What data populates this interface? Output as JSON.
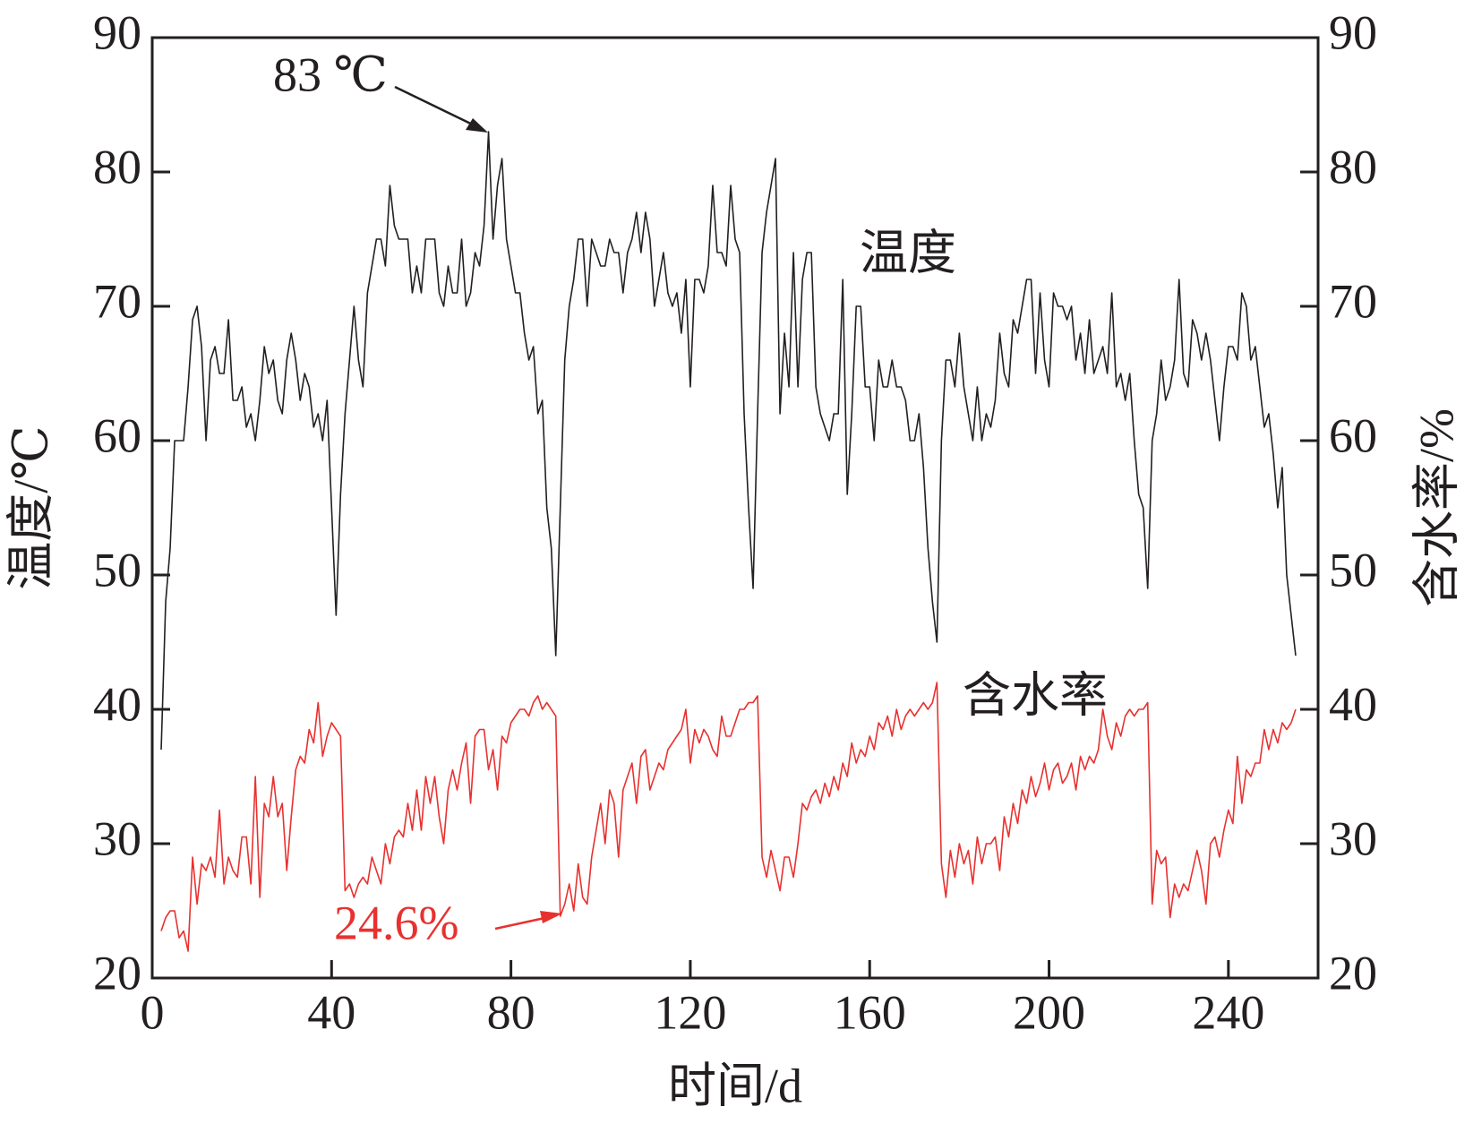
{
  "chart_data": {
    "type": "line",
    "xlabel": "时间/d",
    "ylabel": "温度/℃",
    "y2label": "含水率/%",
    "xlim": [
      0,
      260
    ],
    "xticks": [
      0,
      40,
      80,
      120,
      160,
      200,
      240
    ],
    "ylim": [
      20,
      90
    ],
    "yticks": [
      20,
      30,
      40,
      50,
      60,
      70,
      80,
      90
    ],
    "y2lim": [
      20,
      90
    ],
    "y2ticks": [
      20,
      30,
      40,
      50,
      60,
      70,
      80,
      90
    ],
    "annotations": [
      "83 ℃",
      "24.6%"
    ],
    "x": [
      2,
      3,
      4,
      5,
      6,
      7,
      8,
      9,
      10,
      11,
      12,
      13,
      14,
      15,
      16,
      17,
      18,
      19,
      20,
      21,
      22,
      23,
      24,
      25,
      26,
      27,
      28,
      29,
      30,
      31,
      32,
      33,
      34,
      35,
      36,
      37,
      38,
      39,
      40,
      41,
      42,
      43,
      44,
      45,
      46,
      47,
      48,
      49,
      50,
      51,
      52,
      53,
      54,
      55,
      56,
      57,
      58,
      59,
      60,
      61,
      62,
      63,
      64,
      65,
      66,
      67,
      68,
      69,
      70,
      71,
      72,
      73,
      74,
      75,
      76,
      77,
      78,
      79,
      80,
      81,
      82,
      83,
      84,
      85,
      86,
      87,
      88,
      89,
      90,
      91,
      92,
      93,
      94,
      95,
      96,
      97,
      98,
      99,
      100,
      101,
      102,
      103,
      104,
      105,
      106,
      107,
      108,
      109,
      110,
      111,
      112,
      113,
      114,
      115,
      116,
      117,
      118,
      119,
      120,
      121,
      122,
      123,
      124,
      125,
      126,
      127,
      128,
      129,
      130,
      131,
      132,
      133,
      134,
      135,
      136,
      137,
      138,
      139,
      140,
      141,
      142,
      143,
      144,
      145,
      146,
      147,
      148,
      149,
      150,
      151,
      152,
      153,
      154,
      155,
      156,
      157,
      158,
      159,
      160,
      161,
      162,
      163,
      164,
      165,
      166,
      167,
      168,
      169,
      170,
      171,
      172,
      173,
      174,
      175,
      176,
      177,
      178,
      179,
      180,
      181,
      182,
      183,
      184,
      185,
      186,
      187,
      188,
      189,
      190,
      191,
      192,
      193,
      194,
      195,
      196,
      197,
      198,
      199,
      200,
      201,
      202,
      203,
      204,
      205,
      206,
      207,
      208,
      209,
      210,
      211,
      212,
      213,
      214,
      215,
      216,
      217,
      218,
      219,
      220,
      221,
      222,
      223,
      224,
      225,
      226,
      227,
      228,
      229,
      230,
      231,
      232,
      233,
      234,
      235,
      236,
      237,
      238,
      239,
      240,
      241,
      242,
      243,
      244,
      245,
      246,
      247,
      248,
      249,
      250,
      251,
      252,
      253,
      254,
      255
    ],
    "series": [
      {
        "name": "温度",
        "color": "#231f20",
        "values": [
          37,
          48,
          52,
          60,
          60,
          60,
          64,
          69,
          70,
          67,
          60,
          66,
          67,
          65,
          65,
          69,
          63,
          63,
          64,
          61,
          62,
          60,
          63,
          67,
          65,
          66,
          63,
          62,
          66,
          68,
          66,
          63,
          65,
          64,
          61,
          62,
          60,
          63,
          55,
          47,
          56,
          62,
          66,
          70,
          66,
          64,
          71,
          73,
          75,
          75,
          73,
          79,
          76,
          75,
          75,
          75,
          71,
          73,
          71,
          75,
          75,
          75,
          71,
          70,
          73,
          71,
          71,
          75,
          70,
          71,
          74,
          73,
          76,
          83,
          75,
          79,
          81,
          75,
          73,
          71,
          71,
          68,
          66,
          67,
          62,
          63,
          55,
          52,
          44,
          55,
          66,
          70,
          72,
          75,
          75,
          70,
          75,
          74,
          73,
          73,
          75,
          74,
          74,
          71,
          74,
          75,
          77,
          74,
          77,
          75,
          70,
          72,
          74,
          71,
          70,
          71,
          68,
          72,
          64,
          72,
          72,
          71,
          73,
          79,
          74,
          74,
          73,
          79,
          75,
          74,
          62,
          55,
          49,
          62,
          74,
          77,
          79,
          81,
          62,
          68,
          64,
          74,
          64,
          72,
          74,
          74,
          64,
          62,
          61,
          60,
          62,
          62,
          72,
          56,
          62,
          70,
          70,
          64,
          64,
          60,
          66,
          64,
          64,
          66,
          64,
          64,
          63,
          60,
          60,
          62,
          58,
          52,
          48,
          45,
          60,
          66,
          66,
          64,
          68,
          64,
          62,
          60,
          64,
          60,
          62,
          61,
          63,
          68,
          65,
          64,
          69,
          68,
          70,
          72,
          72,
          65,
          71,
          66,
          64,
          71,
          70,
          70,
          69,
          70,
          66,
          68,
          65,
          69,
          65,
          66,
          67,
          65,
          71,
          64,
          65,
          63,
          65,
          60,
          56,
          55,
          49,
          60,
          62,
          66,
          63,
          64,
          66,
          72,
          65,
          64,
          69,
          68,
          66,
          68,
          66,
          63,
          60,
          64,
          67,
          67,
          66,
          71,
          70,
          66,
          67,
          64,
          61,
          62,
          59,
          55,
          58,
          50,
          47,
          44
        ]
      },
      {
        "name": "含水率",
        "color": "#e8312f",
        "axis": "y2",
        "values": [
          23.5,
          24.5,
          25,
          25,
          23,
          23.5,
          22,
          29,
          25.5,
          28.5,
          28,
          29,
          27.5,
          32.5,
          27,
          29,
          28,
          27.5,
          30.5,
          30.5,
          27,
          35,
          26,
          33,
          32,
          35,
          32,
          33,
          28,
          32,
          35.5,
          36.5,
          36,
          38.5,
          37.5,
          40.5,
          36.5,
          38,
          39,
          38.5,
          38,
          26.5,
          27,
          26,
          27,
          27.5,
          27,
          29,
          28,
          27,
          30,
          28.5,
          30.5,
          31,
          30.5,
          33,
          31,
          34,
          31,
          35,
          33,
          35,
          32,
          30,
          34,
          35.5,
          34,
          36,
          37.5,
          33,
          38,
          38.5,
          38.5,
          35.5,
          37,
          34,
          38,
          37.5,
          39,
          39.5,
          40,
          40,
          39.5,
          40.5,
          41,
          40,
          40.5,
          40,
          39.5,
          24.6,
          25.5,
          27,
          25,
          28.5,
          26,
          25.5,
          29,
          31,
          33,
          30,
          34,
          33,
          29,
          34,
          35,
          36,
          33,
          36.5,
          37,
          34,
          35,
          36,
          35.5,
          37,
          37.5,
          38,
          38.5,
          40,
          36,
          38.5,
          37.5,
          38.5,
          38,
          37,
          36.5,
          39.5,
          38,
          38,
          39,
          40,
          40,
          40.5,
          40.5,
          41,
          29,
          27.5,
          29.5,
          28,
          26.5,
          29,
          29,
          27.5,
          30,
          33,
          32.5,
          33.5,
          34,
          33,
          34.5,
          33.5,
          35,
          34,
          36,
          35,
          37.5,
          36,
          37,
          36.5,
          38,
          37,
          39,
          38.5,
          39.5,
          38,
          40,
          38.5,
          39.5,
          40,
          39.5,
          40,
          40.5,
          40,
          40.5,
          42,
          28.5,
          26,
          29.5,
          27.5,
          30,
          28.5,
          29.5,
          27,
          30.5,
          28.5,
          30,
          30,
          30.5,
          28,
          32,
          30.5,
          33,
          31.5,
          34,
          33,
          35,
          33.5,
          34.5,
          36,
          34,
          35.5,
          36,
          34.5,
          35,
          36,
          34,
          36.5,
          35.5,
          36.5,
          36,
          37,
          40,
          38,
          37,
          39,
          38,
          39.5,
          40,
          39.5,
          40,
          40,
          40.5,
          25.5,
          29.5,
          28.5,
          29,
          24.5,
          27,
          26,
          27,
          26.5,
          28,
          29.5,
          28,
          25.5,
          30,
          30.5,
          29,
          31,
          32.5,
          31.5,
          36.5,
          33,
          35.5,
          35,
          36,
          36,
          38.5,
          37,
          38.5,
          37.5,
          39,
          38.5,
          39,
          40
        ]
      }
    ]
  }
}
